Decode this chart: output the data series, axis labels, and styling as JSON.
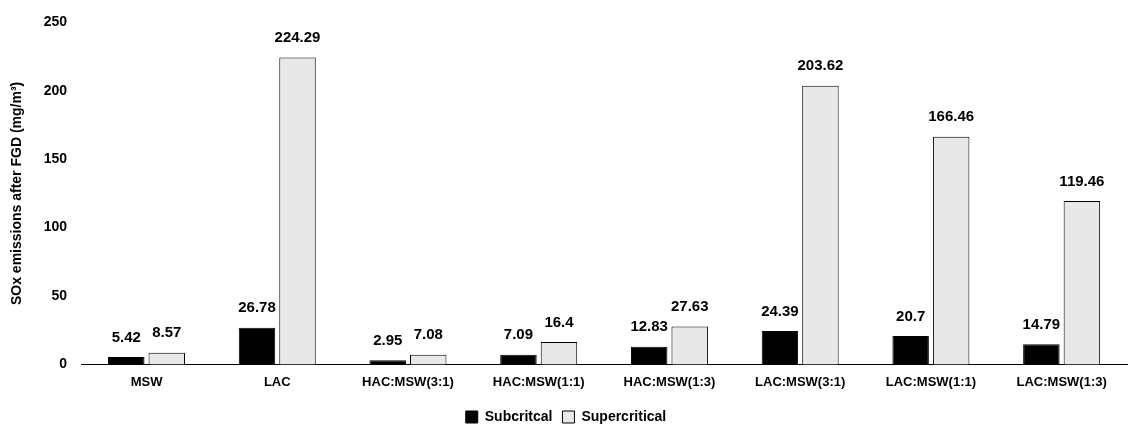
{
  "chart_data": {
    "type": "bar",
    "ylabel": "SOx emissions after FGD (mg/m³)",
    "categories": [
      "MSW",
      "LAC",
      "HAC:MSW(3:1)",
      "HAC:MSW(1:1)",
      "HAC:MSW(1:3)",
      "LAC:MSW(3:1)",
      "LAC:MSW(1:1)",
      "LAC:MSW(1:3)"
    ],
    "series": [
      {
        "name": "Subcritcal",
        "color": "#000000",
        "values": [
          5.42,
          26.78,
          2.95,
          7.09,
          12.83,
          24.39,
          20.7,
          14.79
        ]
      },
      {
        "name": "Supercritical",
        "color": "#e8e8e8",
        "values": [
          8.57,
          224.29,
          7.08,
          16.4,
          27.63,
          203.62,
          166.46,
          119.46
        ]
      }
    ],
    "ylim": [
      0,
      250
    ],
    "yticks": [
      0,
      50,
      100,
      150,
      200,
      250
    ],
    "grid": false,
    "legend": "bottom",
    "data_labels": true
  }
}
